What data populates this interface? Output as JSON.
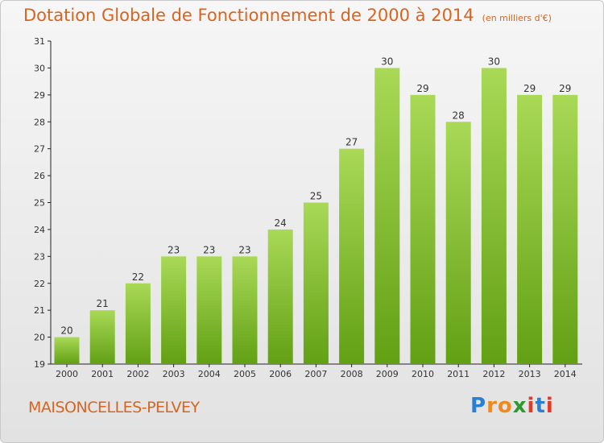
{
  "title": "Dotation Globale de Fonctionnement de 2000 à 2014",
  "unit": "(en milliers d'€)",
  "location": "MAISONCELLES-PELVEY",
  "logo": {
    "letters": [
      "P",
      "r",
      "o",
      "x",
      "i",
      "t",
      "i"
    ],
    "colors": [
      "#2a7fd0",
      "#f08a1c",
      "#f08a1c",
      "#2e9a2e",
      "#e03a2a",
      "#2a7fd0",
      "#e03a2a"
    ]
  },
  "colors": {
    "title": "#d9641e",
    "bar_light": "#a9d957",
    "bar_dark": "#62a014"
  },
  "chart_data": {
    "type": "bar",
    "categories": [
      "2000",
      "2001",
      "2002",
      "2003",
      "2004",
      "2005",
      "2006",
      "2007",
      "2008",
      "2009",
      "2010",
      "2011",
      "2012",
      "2013",
      "2014"
    ],
    "values": [
      20,
      21,
      22,
      23,
      23,
      23,
      24,
      25,
      27,
      30,
      29,
      28,
      30,
      29,
      29
    ],
    "ylim": [
      19,
      31
    ],
    "yticks": [
      19,
      20,
      21,
      22,
      23,
      24,
      25,
      26,
      27,
      28,
      29,
      30,
      31
    ],
    "grid": false
  }
}
